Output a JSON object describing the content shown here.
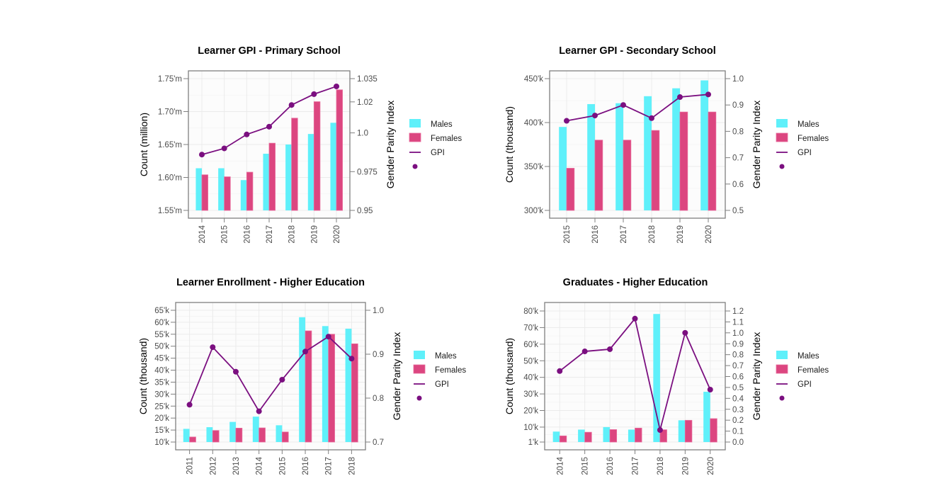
{
  "colors": {
    "males": "#5ff0fa",
    "females": "#dc4680",
    "gpi": "#7b0f80",
    "panel_bg": "#fcfcfc",
    "grid": "#ebebeb",
    "frame": "#7f7f7f"
  },
  "legend": {
    "males": "Males",
    "females": "Females",
    "gpi": "GPI"
  },
  "chart_data": [
    {
      "id": "primary",
      "type": "bar",
      "title": "Learner GPI - Primary School",
      "xlabel": "",
      "ylabel": "Count (million)",
      "y2label": "Gender Parity Index",
      "categories": [
        "2014",
        "2015",
        "2016",
        "2017",
        "2018",
        "2019",
        "2020"
      ],
      "series": [
        {
          "name": "Males",
          "type": "bar",
          "axis": "left",
          "values": [
            1.614,
            1.614,
            1.596,
            1.636,
            1.65,
            1.666,
            1.683
          ]
        },
        {
          "name": "Females",
          "type": "bar",
          "axis": "left",
          "values": [
            1.604,
            1.601,
            1.608,
            1.652,
            1.69,
            1.715,
            1.733
          ]
        },
        {
          "name": "GPI",
          "type": "line",
          "axis": "right",
          "values": [
            0.986,
            0.99,
            0.999,
            1.004,
            1.018,
            1.025,
            1.03
          ]
        }
      ],
      "ylim": [
        1.55,
        1.75
      ],
      "yticks": [
        1.55,
        1.6,
        1.65,
        1.7,
        1.75
      ],
      "yticklabels": [
        "1.55'm",
        "1.60'm",
        "1.65'm",
        "1.70'm",
        "1.75'm"
      ],
      "y2lim": [
        0.95,
        1.035
      ],
      "y2ticks": [
        0.95,
        0.975,
        1.0,
        1.02,
        1.035
      ],
      "y2ticklabels": [
        "0.95",
        "0.975",
        "1.0",
        "1.02",
        "1.035"
      ],
      "grid": true,
      "legend_position": "right"
    },
    {
      "id": "secondary",
      "type": "bar",
      "title": "Learner GPI - Secondary School",
      "xlabel": "",
      "ylabel": "Count (thousand)",
      "y2label": "Gender Parity Index",
      "categories": [
        "2015",
        "2016",
        "2017",
        "2018",
        "2019",
        "2020"
      ],
      "series": [
        {
          "name": "Males",
          "type": "bar",
          "axis": "left",
          "values": [
            395,
            421,
            422,
            430,
            439,
            448
          ]
        },
        {
          "name": "Females",
          "type": "bar",
          "axis": "left",
          "values": [
            348,
            380,
            380,
            391,
            412,
            412
          ]
        },
        {
          "name": "GPI",
          "type": "line",
          "axis": "right",
          "values": [
            0.84,
            0.86,
            0.9,
            0.85,
            0.93,
            0.94
          ]
        }
      ],
      "ylim": [
        300,
        450
      ],
      "yticks": [
        300,
        350,
        400,
        450
      ],
      "yticklabels": [
        "300'k",
        "350'k",
        "400'k",
        "450'k"
      ],
      "y2lim": [
        0.5,
        1.0
      ],
      "y2ticks": [
        0.5,
        0.6,
        0.7,
        0.8,
        0.9,
        1.0
      ],
      "y2ticklabels": [
        "0.5",
        "0.6",
        "0.7",
        "0.8",
        "0.9",
        "1.0"
      ],
      "grid": true,
      "legend_position": "right"
    },
    {
      "id": "enrollment",
      "type": "bar",
      "title": "Learner Enrollment - Higher Education",
      "xlabel": "",
      "ylabel": "Count (thousand)",
      "y2label": "Gender Parity Index",
      "categories": [
        "2011",
        "2012",
        "2013",
        "2014",
        "2015",
        "2016",
        "2017",
        "2018"
      ],
      "series": [
        {
          "name": "Males",
          "type": "bar",
          "axis": "left",
          "values": [
            15.5,
            16.2,
            18.4,
            20.6,
            17.0,
            62.1,
            58.4,
            57.3
          ]
        },
        {
          "name": "Females",
          "type": "bar",
          "axis": "left",
          "values": [
            12.1,
            14.8,
            15.8,
            15.9,
            14.2,
            56.4,
            55.0,
            51.0
          ]
        },
        {
          "name": "GPI",
          "type": "line",
          "axis": "right",
          "values": [
            0.785,
            0.916,
            0.86,
            0.77,
            0.842,
            0.906,
            0.94,
            0.89
          ]
        }
      ],
      "ylim": [
        10,
        65
      ],
      "yticks": [
        10,
        15,
        20,
        25,
        30,
        35,
        40,
        45,
        50,
        55,
        60,
        65
      ],
      "yticklabels": [
        "10'k",
        "15'k",
        "20'k",
        "25'k",
        "30'k",
        "35'k",
        "40'k",
        "45'k",
        "50'k",
        "55'k",
        "60'k",
        "65'k"
      ],
      "y2lim": [
        0.7,
        1.0
      ],
      "y2ticks": [
        0.7,
        0.8,
        0.9,
        1.0
      ],
      "y2ticklabels": [
        "0.7",
        "0.8",
        "0.9",
        "1.0"
      ],
      "grid": true,
      "legend_position": "right"
    },
    {
      "id": "graduates",
      "type": "bar",
      "title": "Graduates - Higher Education",
      "xlabel": "",
      "ylabel": "Count (thousand)",
      "y2label": "Gender Parity Index",
      "categories": [
        "2014",
        "2015",
        "2016",
        "2017",
        "2018",
        "2019",
        "2020"
      ],
      "series": [
        {
          "name": "Males",
          "type": "bar",
          "axis": "left",
          "values": [
            7.3,
            8.5,
            10.0,
            8.5,
            78.2,
            14.1,
            31.3
          ]
        },
        {
          "name": "Females",
          "type": "bar",
          "axis": "left",
          "values": [
            4.7,
            6.9,
            8.5,
            9.4,
            8.4,
            14.1,
            15.1
          ]
        },
        {
          "name": "GPI",
          "type": "line",
          "axis": "right",
          "values": [
            0.65,
            0.83,
            0.85,
            1.13,
            0.11,
            1.0,
            0.48
          ]
        }
      ],
      "ylim": [
        1,
        80
      ],
      "yticks": [
        1,
        10,
        20,
        30,
        40,
        50,
        60,
        70,
        80
      ],
      "yticklabels": [
        "1'k",
        "10'k",
        "20'k",
        "30'k",
        "40'k",
        "50'k",
        "60'k",
        "70'k",
        "80'k"
      ],
      "y2lim": [
        0.0,
        1.2
      ],
      "y2ticks": [
        0.0,
        0.1,
        0.2,
        0.3,
        0.4,
        0.5,
        0.6,
        0.7,
        0.8,
        0.9,
        1.0,
        1.1,
        1.2
      ],
      "y2ticklabels": [
        "0.0",
        "0.1",
        "0.2",
        "0.3",
        "0.4",
        "0.5",
        "0.6",
        "0.7",
        "0.8",
        "0.9",
        "1.0",
        "1.1",
        "1.2"
      ],
      "grid": true,
      "legend_position": "right"
    }
  ]
}
